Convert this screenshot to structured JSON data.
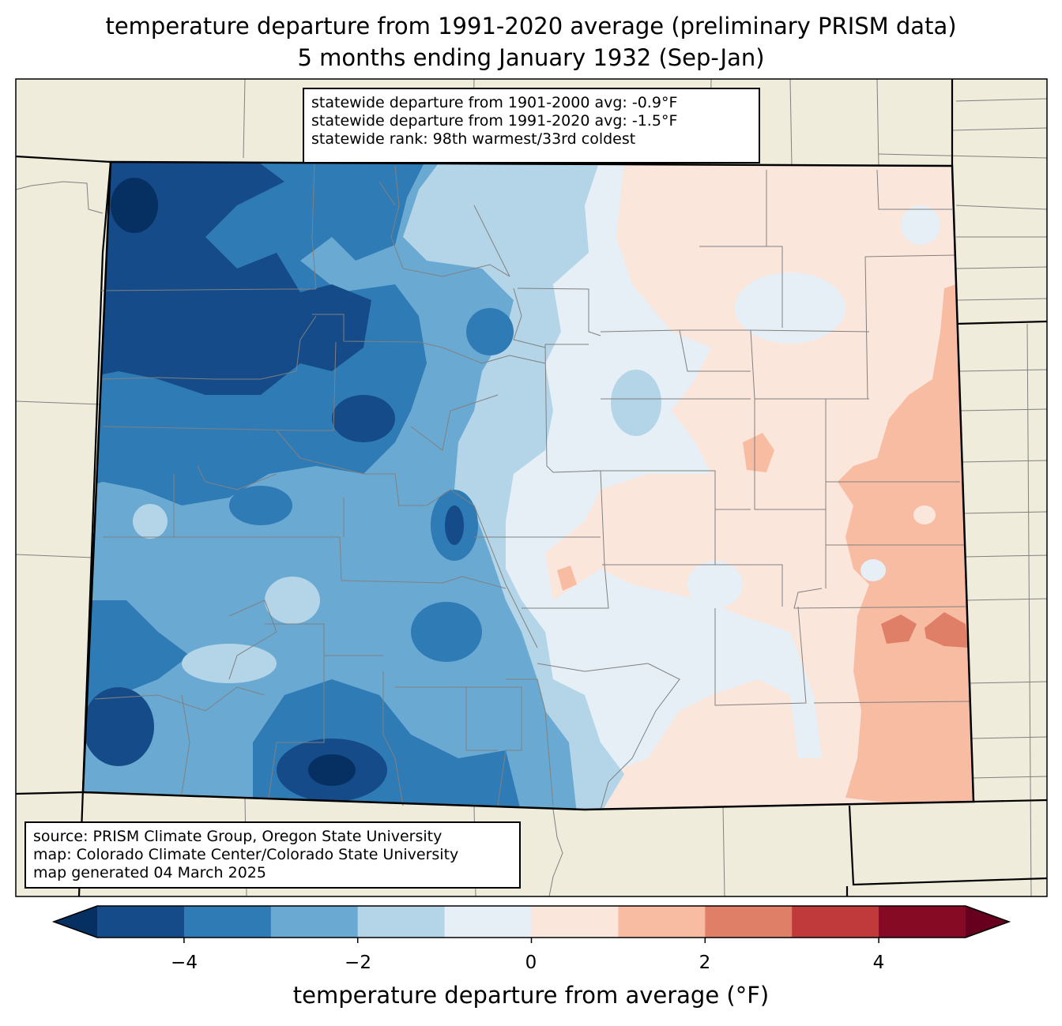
{
  "title": {
    "line1": "temperature departure from 1991-2020 average (preliminary PRISM data)",
    "line2": "5 months ending January 1932 (Sep-Jan)"
  },
  "stats": {
    "line1": "statewide departure from 1901-2000 avg: -0.9°F",
    "line2": "statewide departure from 1991-2020 avg: -1.5°F",
    "line3": "statewide rank: 98th warmest/33rd coldest"
  },
  "source": {
    "line1": "source: PRISM Climate Group, Oregon State University",
    "line2": "map: Colorado Climate Center/Colorado State University",
    "line3": "map generated 04 March 2025"
  },
  "colorbar": {
    "label": "temperature departure from average (°F)",
    "ticks": [
      "−4",
      "−2",
      "0",
      "2",
      "4"
    ],
    "range": [
      -5,
      5
    ],
    "colors": [
      "#053061",
      "#144b88",
      "#2f7bb6",
      "#6aaad2",
      "#b4d5e8",
      "#e6eff5",
      "#fbe6dc",
      "#f7bca2",
      "#e07f68",
      "#c0393b",
      "#860a24",
      "#67001f"
    ]
  },
  "colors": {
    "land": "#efecdb",
    "state_border": "#000000",
    "county_border": "#808080"
  }
}
